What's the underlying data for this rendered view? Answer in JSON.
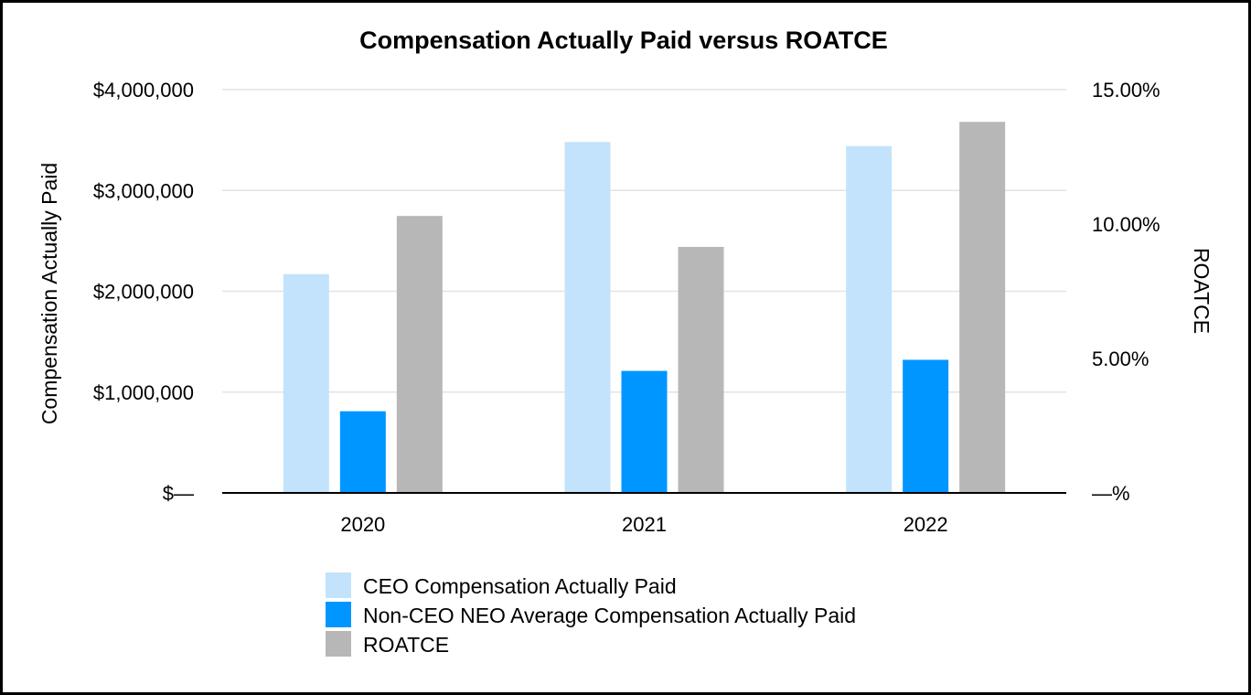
{
  "chart_data": {
    "type": "bar",
    "title": "Compensation Actually Paid versus ROATCE",
    "categories": [
      "2020",
      "2021",
      "2022"
    ],
    "ylabel": "Compensation Actually Paid",
    "y2label": "ROATCE",
    "ylim": [
      0,
      4000000
    ],
    "y2lim": [
      0,
      15
    ],
    "yticks": [
      {
        "value": 0,
        "label": "$—"
      },
      {
        "value": 1000000,
        "label": "$1,000,000"
      },
      {
        "value": 2000000,
        "label": "$2,000,000"
      },
      {
        "value": 3000000,
        "label": "$3,000,000"
      },
      {
        "value": 4000000,
        "label": "$4,000,000"
      }
    ],
    "y2ticks": [
      {
        "value": 0,
        "label": "—%"
      },
      {
        "value": 5,
        "label": "5.00%"
      },
      {
        "value": 10,
        "label": "10.00%"
      },
      {
        "value": 15,
        "label": "15.00%"
      }
    ],
    "grid": true,
    "legend_position": "bottom",
    "series": [
      {
        "name": "CEO Compensation Actually Paid",
        "axis": "left",
        "color": "#C2E3FB",
        "values": [
          2170000,
          3480000,
          3440000
        ]
      },
      {
        "name": "Non-CEO NEO Average Compensation Actually Paid",
        "axis": "left",
        "color": "#0096FF",
        "values": [
          810000,
          1210000,
          1320000
        ]
      },
      {
        "name": "ROATCE",
        "axis": "right",
        "color": "#B7B7B7",
        "values": [
          10.3,
          9.15,
          13.8
        ]
      }
    ]
  }
}
